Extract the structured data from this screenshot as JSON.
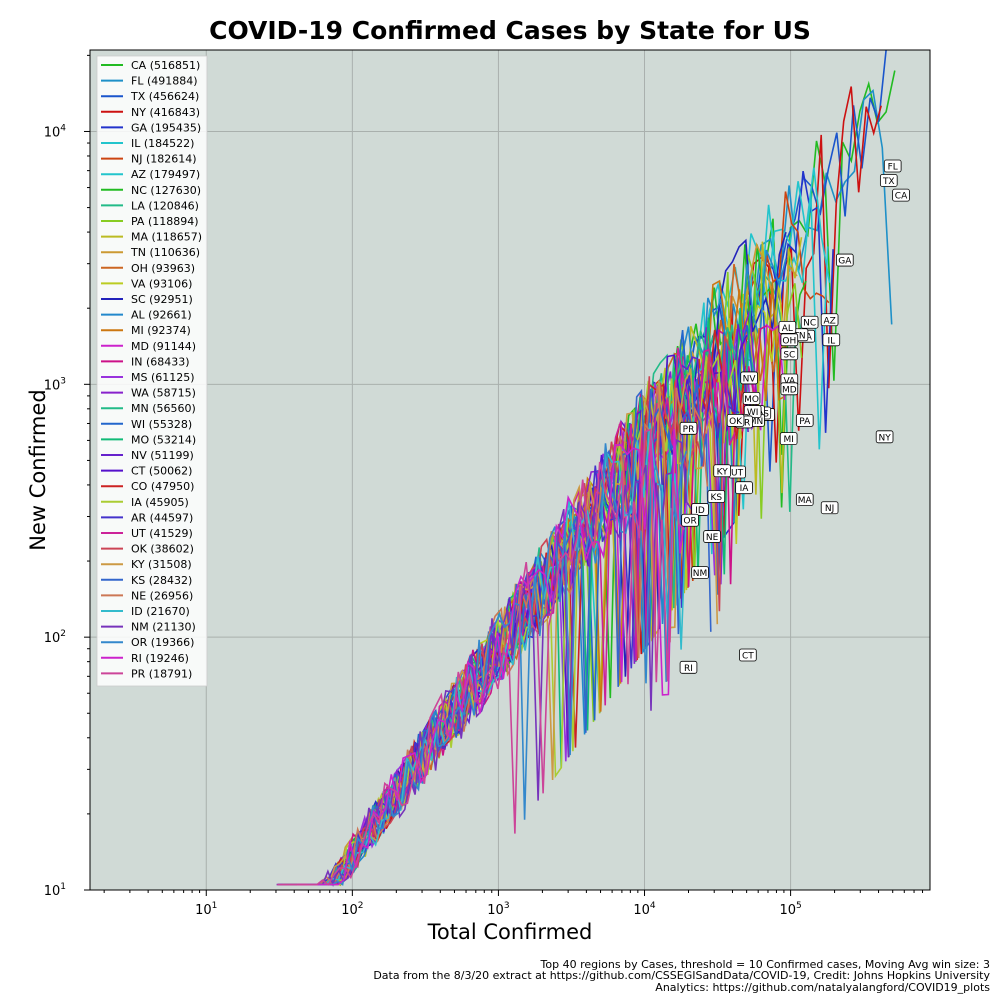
{
  "chart_data": {
    "type": "line",
    "title": "COVID-19  Confirmed Cases by State for US",
    "xlabel": "Total Confirmed",
    "ylabel": "New Confirmed",
    "xscale": "log",
    "yscale": "log",
    "xlim": [
      1.6,
      900000
    ],
    "ylim": [
      10,
      21000
    ],
    "x_ticks": [
      {
        "value": 10,
        "base": "10",
        "exp": "1"
      },
      {
        "value": 100,
        "base": "10",
        "exp": "2"
      },
      {
        "value": 1000,
        "base": "10",
        "exp": "3"
      },
      {
        "value": 10000,
        "base": "10",
        "exp": "4"
      },
      {
        "value": 100000,
        "base": "10",
        "exp": "5"
      }
    ],
    "y_ticks": [
      {
        "value": 10,
        "base": "10",
        "exp": "1"
      },
      {
        "value": 100,
        "base": "10",
        "exp": "2"
      },
      {
        "value": 1000,
        "base": "10",
        "exp": "3"
      },
      {
        "value": 10000,
        "base": "10",
        "exp": "4"
      }
    ],
    "grid": true,
    "legend_position": "top-left",
    "background_color": "#d0dad6",
    "series": [
      {
        "name": "CA (516851)",
        "abbr": "CA",
        "total": 516851,
        "color": "#22bb22",
        "label_xy": [
          570000,
          5600
        ],
        "peak": 11000
      },
      {
        "name": "FL (491884)",
        "abbr": "FL",
        "total": 491884,
        "color": "#1e90c8",
        "label_xy": [
          500000,
          7300
        ],
        "peak": 11500
      },
      {
        "name": "TX (456624)",
        "abbr": "TX",
        "total": 456624,
        "color": "#1a55cc",
        "label_xy": [
          470000,
          6400
        ],
        "peak": 12500
      },
      {
        "name": "NY (416843)",
        "abbr": "NY",
        "total": 416843,
        "color": "#cc1111",
        "label_xy": [
          440000,
          620
        ],
        "peak": 10500
      },
      {
        "name": "GA (195435)",
        "abbr": "GA",
        "total": 195435,
        "color": "#2233cc",
        "label_xy": [
          235000,
          3100
        ],
        "peak": 4300
      },
      {
        "name": "IL (184522)",
        "abbr": "IL",
        "total": 184522,
        "color": "#22c4cc",
        "label_xy": [
          190000,
          1500
        ],
        "peak": 4000
      },
      {
        "name": "NJ (182614)",
        "abbr": "NJ",
        "total": 182614,
        "color": "#cc4411",
        "label_xy": [
          185000,
          325
        ],
        "peak": 3900
      },
      {
        "name": "AZ (179497)",
        "abbr": "AZ",
        "total": 179497,
        "color": "#22c4cc",
        "label_xy": [
          185000,
          1800
        ],
        "peak": 3700
      },
      {
        "name": "NC (127630)",
        "abbr": "NC",
        "total": 127630,
        "color": "#22bb22",
        "label_xy": [
          135000,
          1760
        ],
        "peak": 2200
      },
      {
        "name": "LA (120846)",
        "abbr": "LA",
        "total": 120846,
        "color": "#22bb88",
        "label_xy": [
          128000,
          1550
        ],
        "peak": 2100
      },
      {
        "name": "PA (118894)",
        "abbr": "PA",
        "total": 118894,
        "color": "#88cc22",
        "label_xy": [
          125000,
          720
        ],
        "peak": 2000
      },
      {
        "name": "MA (118657)",
        "abbr": "MA",
        "total": 118657,
        "color": "#bbbb22",
        "label_xy": [
          125000,
          350
        ],
        "peak": 2500
      },
      {
        "name": "TN (110636)",
        "abbr": "TN",
        "total": 110636,
        "color": "#cc9933",
        "label_xy": [
          115000,
          1570
        ],
        "peak": 2300
      },
      {
        "name": "OH (93963)",
        "abbr": "OH",
        "total": 93963,
        "color": "#cc6622",
        "label_xy": [
          98000,
          1500
        ],
        "peak": 1900
      },
      {
        "name": "VA (93106)",
        "abbr": "VA",
        "total": 93106,
        "color": "#bbcc22",
        "label_xy": [
          98000,
          1040
        ],
        "peak": 1600
      },
      {
        "name": "SC (92951)",
        "abbr": "SC",
        "total": 92951,
        "color": "#2222bb",
        "label_xy": [
          98000,
          1320
        ],
        "peak": 2200
      },
      {
        "name": "AL (92661)",
        "abbr": "AL",
        "total": 92661,
        "color": "#2288cc",
        "label_xy": [
          95000,
          1680
        ],
        "peak": 2000
      },
      {
        "name": "MI (92374)",
        "abbr": "MI",
        "total": 92374,
        "color": "#cc7711",
        "label_xy": [
          97000,
          610
        ],
        "peak": 1550
      },
      {
        "name": "MD (91144)",
        "abbr": "MD",
        "total": 91144,
        "color": "#cc22cc",
        "label_xy": [
          98000,
          960
        ],
        "peak": 1100
      },
      {
        "name": "IN (68433)",
        "abbr": "IN",
        "total": 68433,
        "color": "#cc1188",
        "label_xy": [
          68000,
          760
        ],
        "peak": 1100
      },
      {
        "name": "MS (61125)",
        "abbr": "MS",
        "total": 61125,
        "color": "#9933dd",
        "label_xy": [
          64000,
          770
        ],
        "peak": 1200
      },
      {
        "name": "WA (58715)",
        "abbr": "WA",
        "total": 58715,
        "color": "#8822cc",
        "label_xy": [
          58000,
          780
        ],
        "peak": 1100
      },
      {
        "name": "MN (56560)",
        "abbr": "MN",
        "total": 56560,
        "color": "#22bb88",
        "label_xy": [
          58000,
          720
        ],
        "peak": 950
      },
      {
        "name": "WI (55328)",
        "abbr": "WI",
        "total": 55328,
        "color": "#2266cc",
        "label_xy": [
          55000,
          780
        ],
        "peak": 1000
      },
      {
        "name": "MO (53214)",
        "abbr": "MO",
        "total": 53214,
        "color": "#11bb77",
        "label_xy": [
          54000,
          880
        ],
        "peak": 1200
      },
      {
        "name": "NV (51199)",
        "abbr": "NV",
        "total": 51199,
        "color": "#6622cc",
        "label_xy": [
          52000,
          1060
        ],
        "peak": 1200
      },
      {
        "name": "CT (50062)",
        "abbr": "CT",
        "total": 50062,
        "color": "#5511cc",
        "label_xy": [
          51000,
          85
        ],
        "peak": 1100
      },
      {
        "name": "CO (47950)",
        "abbr": "CO",
        "total": 47950,
        "color": "#cc2222",
        "label_xy": [
          45000,
          720
        ],
        "peak": 1000
      },
      {
        "name": "IA (45905)",
        "abbr": "IA",
        "total": 45905,
        "color": "#aacc33",
        "label_xy": [
          48000,
          390
        ],
        "peak": 800
      },
      {
        "name": "AR (44597)",
        "abbr": "AR",
        "total": 44597,
        "color": "#4433cc",
        "label_xy": [
          48000,
          710
        ],
        "peak": 900
      },
      {
        "name": "UT (41529)",
        "abbr": "UT",
        "total": 41529,
        "color": "#cc2299",
        "label_xy": [
          43000,
          450
        ],
        "peak": 900
      },
      {
        "name": "OK (38602)",
        "abbr": "OK",
        "total": 38602,
        "color": "#cc4455",
        "label_xy": [
          42000,
          720
        ],
        "peak": 850
      },
      {
        "name": "KY (31508)",
        "abbr": "KY",
        "total": 31508,
        "color": "#cc9944",
        "label_xy": [
          34000,
          455
        ],
        "peak": 750
      },
      {
        "name": "KS (28432)",
        "abbr": "KS",
        "total": 28432,
        "color": "#3366cc",
        "label_xy": [
          31000,
          360
        ],
        "peak": 700
      },
      {
        "name": "NE (26956)",
        "abbr": "NE",
        "total": 26956,
        "color": "#cc7755",
        "label_xy": [
          29000,
          250
        ],
        "peak": 650
      },
      {
        "name": "ID (21670)",
        "abbr": "ID",
        "total": 21670,
        "color": "#33bbcc",
        "label_xy": [
          24000,
          320
        ],
        "peak": 600
      },
      {
        "name": "NM (21130)",
        "abbr": "NM",
        "total": 21130,
        "color": "#7733bb",
        "label_xy": [
          24000,
          180
        ],
        "peak": 350
      },
      {
        "name": "OR (19366)",
        "abbr": "OR",
        "total": 19366,
        "color": "#3388cc",
        "label_xy": [
          20500,
          290
        ],
        "peak": 450
      },
      {
        "name": "RI (19246)",
        "abbr": "RI",
        "total": 19246,
        "color": "#cc22cc",
        "label_xy": [
          20000,
          76
        ],
        "peak": 400
      },
      {
        "name": "PR (18791)",
        "abbr": "PR",
        "total": 18791,
        "color": "#cc4499",
        "label_xy": [
          20000,
          670
        ],
        "peak": 450
      }
    ]
  },
  "footnotes": {
    "line1": "Top 40 regions by Cases, threshold = 10 Confirmed cases, Moving Avg win size: 3",
    "line2": "Data from the 8/3/20 extract at https://github.com/CSSEGISandData/COVID-19, Credit: Johns Hopkins University",
    "line3": "Analytics: https://github.com/natalyalangford/COVID19_plots"
  }
}
